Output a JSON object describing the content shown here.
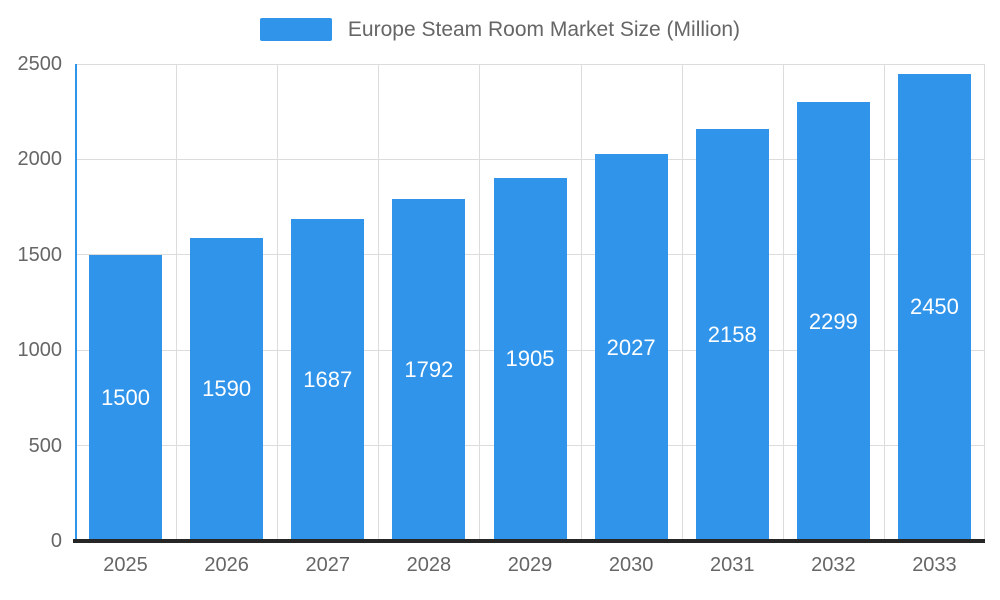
{
  "chart_data": {
    "type": "bar",
    "title": "Europe Steam Room Market Size (Million)",
    "categories": [
      "2025",
      "2026",
      "2027",
      "2028",
      "2029",
      "2030",
      "2031",
      "2032",
      "2033"
    ],
    "values": [
      1500,
      1590,
      1687,
      1792,
      1905,
      2027,
      2158,
      2299,
      2450
    ],
    "xlabel": "",
    "ylabel": "",
    "ylim": [
      0,
      2500
    ],
    "yticks": [
      0,
      500,
      1000,
      1500,
      2000,
      2500
    ],
    "grid": true,
    "legend_position": "top",
    "bar_color": "#2F94EA",
    "value_label_color": "#ffffff",
    "axis_text_color": "#666666",
    "gridline_color": "#dcdcdc",
    "x_axis_line_color": "#262626",
    "y_axis_line_color": "#2F94EA"
  }
}
